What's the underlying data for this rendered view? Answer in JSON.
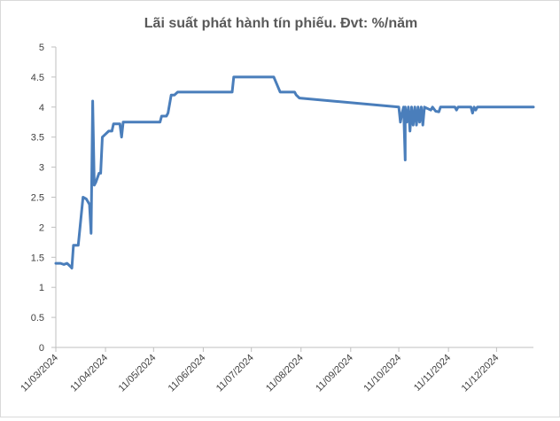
{
  "chart_data": {
    "type": "line",
    "title": "Lãi suất phát hành tín phiếu. Đvt: %/năm",
    "xlabel": "",
    "ylabel": "",
    "ylim": [
      0,
      5
    ],
    "yticks": [
      "0",
      "0.5",
      "1",
      "1.5",
      "2",
      "2.5",
      "3",
      "3.5",
      "4",
      "4.5",
      "5"
    ],
    "xticks": [
      "11/03/2024",
      "11/04/2024",
      "11/05/2024",
      "11/06/2024",
      "11/07/2024",
      "11/08/2024",
      "11/09/2024",
      "11/10/2024",
      "11/11/2024",
      "11/12/2024"
    ],
    "xlim": [
      "2024-03-11",
      "2025-01-03"
    ],
    "grid": false,
    "color": "#4a7ebb",
    "series": [
      {
        "points": [
          [
            "2024-03-11",
            1.4
          ],
          [
            "2024-03-14",
            1.4
          ],
          [
            "2024-03-16",
            1.38
          ],
          [
            "2024-03-18",
            1.4
          ],
          [
            "2024-03-20",
            1.35
          ],
          [
            "2024-03-21",
            1.32
          ],
          [
            "2024-03-22",
            1.7
          ],
          [
            "2024-03-25",
            1.7
          ],
          [
            "2024-03-28",
            2.5
          ],
          [
            "2024-03-30",
            2.47
          ],
          [
            "2024-04-01",
            2.38
          ],
          [
            "2024-04-02",
            1.9
          ],
          [
            "2024-04-03",
            4.1
          ],
          [
            "2024-04-04",
            2.7
          ],
          [
            "2024-04-05",
            2.75
          ],
          [
            "2024-04-07",
            2.9
          ],
          [
            "2024-04-08",
            2.9
          ],
          [
            "2024-04-09",
            3.5
          ],
          [
            "2024-04-11",
            3.55
          ],
          [
            "2024-04-13",
            3.6
          ],
          [
            "2024-04-15",
            3.6
          ],
          [
            "2024-04-16",
            3.72
          ],
          [
            "2024-04-19",
            3.72
          ],
          [
            "2024-04-20",
            3.72
          ],
          [
            "2024-04-21",
            3.5
          ],
          [
            "2024-04-22",
            3.75
          ],
          [
            "2024-05-15",
            3.75
          ],
          [
            "2024-05-16",
            3.85
          ],
          [
            "2024-05-19",
            3.85
          ],
          [
            "2024-05-20",
            3.9
          ],
          [
            "2024-05-22",
            4.2
          ],
          [
            "2024-05-24",
            4.2
          ],
          [
            "2024-05-26",
            4.25
          ],
          [
            "2024-06-29",
            4.25
          ],
          [
            "2024-06-30",
            4.5
          ],
          [
            "2024-07-25",
            4.5
          ],
          [
            "2024-07-29",
            4.25
          ],
          [
            "2024-08-07",
            4.25
          ],
          [
            "2024-08-08",
            4.2
          ],
          [
            "2024-08-10",
            4.15
          ],
          [
            "2024-10-11",
            4.0
          ],
          [
            "2024-10-12",
            3.75
          ],
          [
            "2024-10-13",
            3.9
          ],
          [
            "2024-10-14",
            4.0
          ],
          [
            "2024-10-15",
            3.12
          ],
          [
            "2024-10-15",
            4.0
          ],
          [
            "2024-10-16",
            3.75
          ],
          [
            "2024-10-17",
            4.0
          ],
          [
            "2024-10-18",
            3.6
          ],
          [
            "2024-10-19",
            4.0
          ],
          [
            "2024-10-20",
            3.7
          ],
          [
            "2024-10-21",
            4.0
          ],
          [
            "2024-10-22",
            3.7
          ],
          [
            "2024-10-23",
            4.0
          ],
          [
            "2024-10-24",
            3.75
          ],
          [
            "2024-10-25",
            4.0
          ],
          [
            "2024-10-26",
            3.7
          ],
          [
            "2024-10-27",
            4.0
          ],
          [
            "2024-10-31",
            3.95
          ],
          [
            "2024-11-01",
            4.0
          ],
          [
            "2024-11-03",
            3.93
          ],
          [
            "2024-11-05",
            3.92
          ],
          [
            "2024-11-06",
            4.0
          ],
          [
            "2024-11-15",
            4.0
          ],
          [
            "2024-11-16",
            3.95
          ],
          [
            "2024-11-17",
            4.0
          ],
          [
            "2024-11-25",
            4.0
          ],
          [
            "2024-11-26",
            3.9
          ],
          [
            "2024-11-27",
            4.0
          ],
          [
            "2024-11-28",
            3.95
          ],
          [
            "2024-11-29",
            4.0
          ],
          [
            "2025-01-03",
            4.0
          ]
        ]
      }
    ]
  }
}
